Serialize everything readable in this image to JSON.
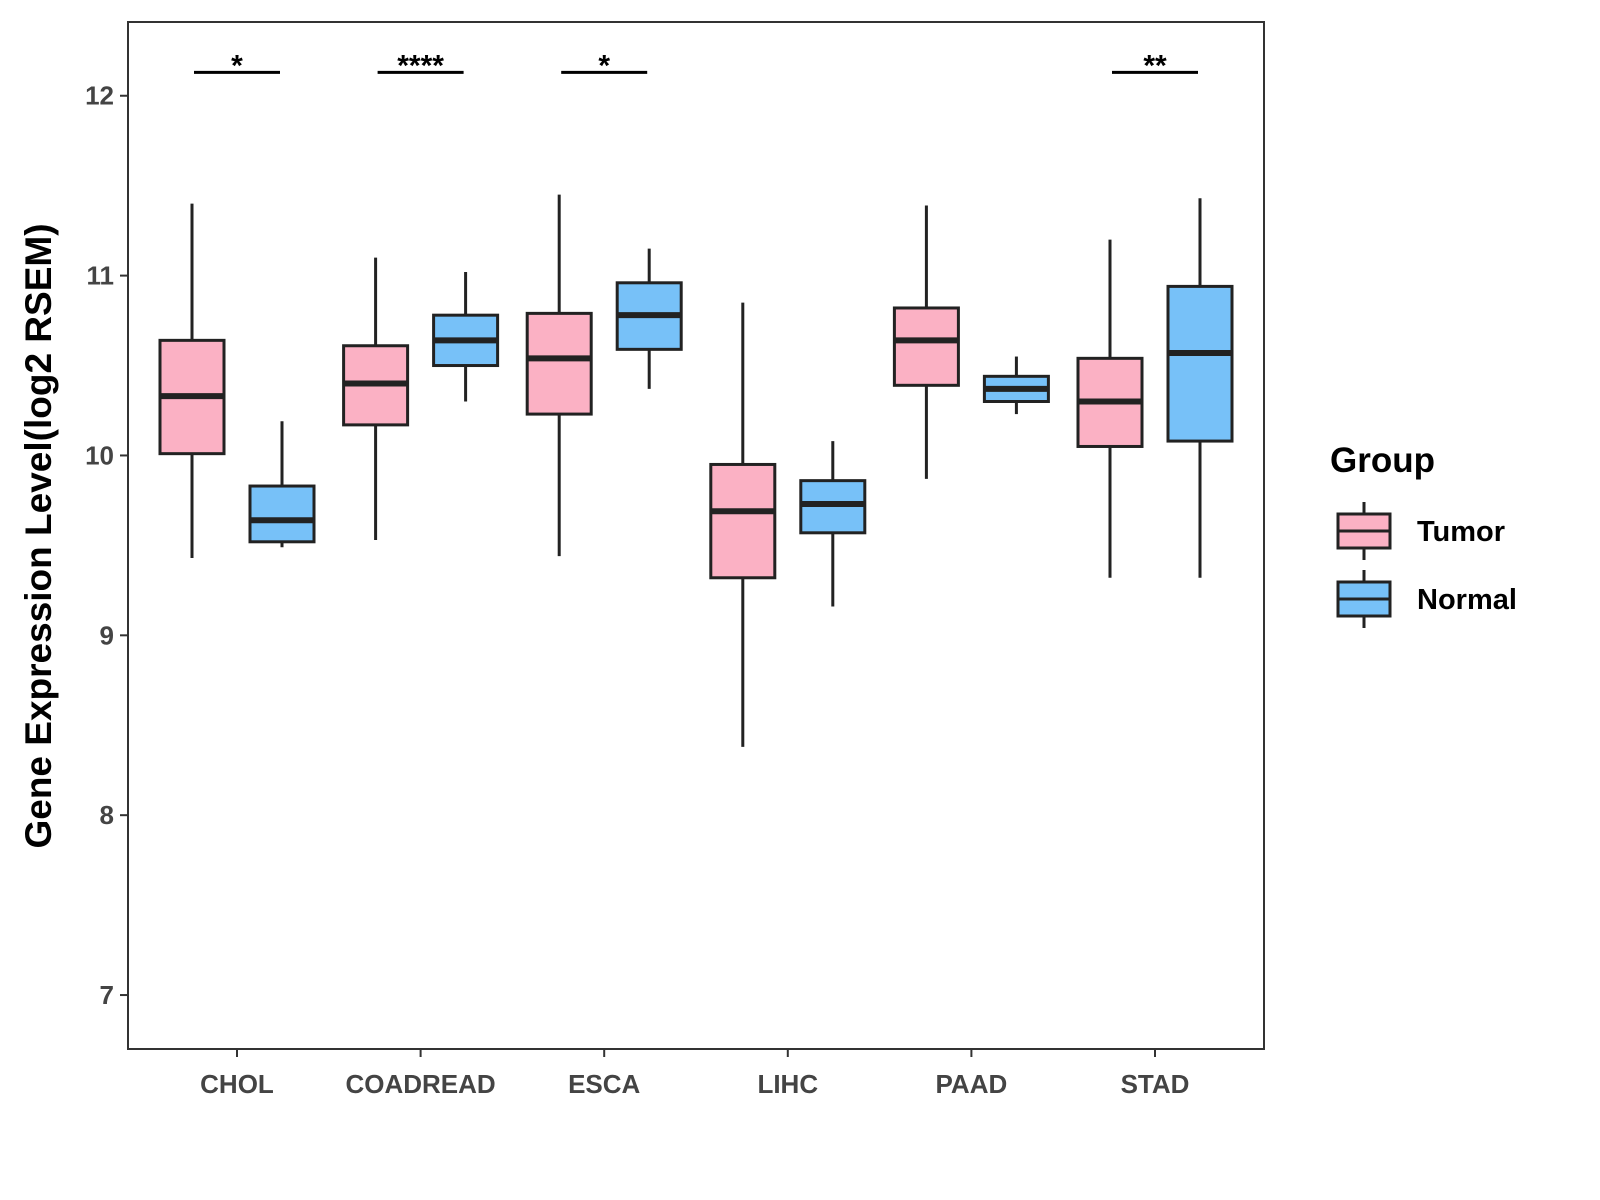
{
  "chart_data": {
    "type": "boxplot",
    "title": "",
    "xlabel": "",
    "ylabel": "Gene Expression Level(log2 RSEM)",
    "ylim": [
      6.7,
      12.41
    ],
    "yticks": [
      7,
      8,
      9,
      10,
      11,
      12
    ],
    "grid": false,
    "categories": [
      "CHOL",
      "COADREAD",
      "ESCA",
      "LIHC",
      "PAAD",
      "STAD"
    ],
    "legend": {
      "title": "Group",
      "placement": "right"
    },
    "series": [
      {
        "name": "Tumor",
        "color": "#FBB1C4",
        "boxes": [
          {
            "min": 9.43,
            "q1": 10.01,
            "median": 10.33,
            "q3": 10.64,
            "max": 11.4
          },
          {
            "min": 9.53,
            "q1": 10.17,
            "median": 10.4,
            "q3": 10.61,
            "max": 11.1
          },
          {
            "min": 9.44,
            "q1": 10.23,
            "median": 10.54,
            "q3": 10.79,
            "max": 11.45
          },
          {
            "min": 8.38,
            "q1": 9.32,
            "median": 9.69,
            "q3": 9.95,
            "max": 10.85
          },
          {
            "min": 9.87,
            "q1": 10.39,
            "median": 10.64,
            "q3": 10.82,
            "max": 11.39
          },
          {
            "min": 9.32,
            "q1": 10.05,
            "median": 10.3,
            "q3": 10.54,
            "max": 11.2
          }
        ]
      },
      {
        "name": "Normal",
        "color": "#77C1F8",
        "boxes": [
          {
            "min": 9.49,
            "q1": 9.52,
            "median": 9.64,
            "q3": 9.83,
            "max": 10.19
          },
          {
            "min": 10.3,
            "q1": 10.5,
            "median": 10.64,
            "q3": 10.78,
            "max": 11.02
          },
          {
            "min": 10.37,
            "q1": 10.59,
            "median": 10.78,
            "q3": 10.96,
            "max": 11.15
          },
          {
            "min": 9.16,
            "q1": 9.57,
            "median": 9.73,
            "q3": 9.86,
            "max": 10.08
          },
          {
            "min": 10.23,
            "q1": 10.3,
            "median": 10.37,
            "q3": 10.44,
            "max": 10.55
          },
          {
            "min": 9.32,
            "q1": 10.08,
            "median": 10.57,
            "q3": 10.94,
            "max": 11.43
          }
        ]
      }
    ],
    "significance": [
      {
        "category": "CHOL",
        "label": "*",
        "y": 12.13
      },
      {
        "category": "COADREAD",
        "label": "****",
        "y": 12.13
      },
      {
        "category": "ESCA",
        "label": "*",
        "y": 12.13
      },
      {
        "category": "STAD",
        "label": "**",
        "y": 12.13
      }
    ]
  }
}
